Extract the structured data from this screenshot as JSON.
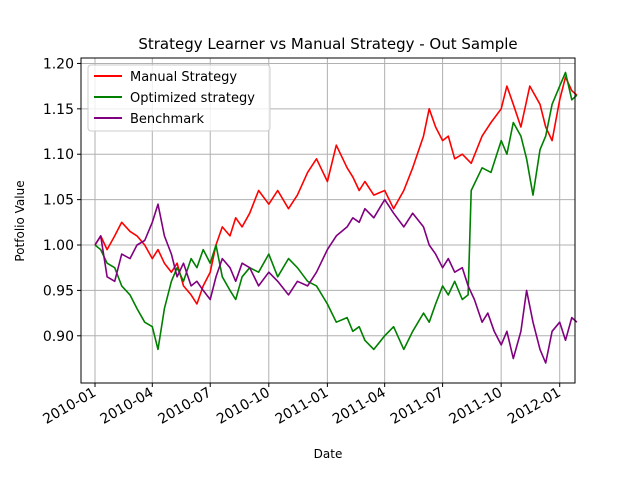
{
  "chart_data": {
    "type": "line",
    "title": "Strategy Learner vs Manual Strategy - Out Sample",
    "xlabel": "Date",
    "ylabel": "Potfolio Value",
    "xlim": [
      "2009-12-10",
      "2012-01-25"
    ],
    "ylim": [
      0.848,
      1.206
    ],
    "grid": true,
    "legend_position": "top-left",
    "x_ticks": [
      "2010-01",
      "2010-04",
      "2010-07",
      "2010-10",
      "2011-01",
      "2011-04",
      "2011-07",
      "2011-10",
      "2012-01"
    ],
    "x_tick_dates": [
      "2010-01-01",
      "2010-04-01",
      "2010-07-01",
      "2010-10-01",
      "2011-01-01",
      "2011-04-01",
      "2011-07-01",
      "2011-10-01",
      "2012-01-01"
    ],
    "y_ticks": [
      "0.90",
      "0.95",
      "1.00",
      "1.05",
      "1.10",
      "1.15",
      "1.20"
    ],
    "y_tick_values": [
      0.9,
      0.95,
      1.0,
      1.05,
      1.1,
      1.15,
      1.2
    ],
    "series": [
      {
        "name": "Manual Strategy",
        "color": "#ff0000",
        "points": [
          [
            "2010-01-01",
            1.0
          ],
          [
            "2010-01-10",
            1.01
          ],
          [
            "2010-01-20",
            0.995
          ],
          [
            "2010-02-01",
            1.01
          ],
          [
            "2010-02-12",
            1.025
          ],
          [
            "2010-02-25",
            1.015
          ],
          [
            "2010-03-08",
            1.01
          ],
          [
            "2010-03-20",
            1.0
          ],
          [
            "2010-04-01",
            0.985
          ],
          [
            "2010-04-10",
            0.995
          ],
          [
            "2010-04-20",
            0.98
          ],
          [
            "2010-05-01",
            0.97
          ],
          [
            "2010-05-10",
            0.98
          ],
          [
            "2010-05-20",
            0.955
          ],
          [
            "2010-06-01",
            0.945
          ],
          [
            "2010-06-10",
            0.935
          ],
          [
            "2010-06-20",
            0.955
          ],
          [
            "2010-07-01",
            0.97
          ],
          [
            "2010-07-10",
            1.0
          ],
          [
            "2010-07-20",
            1.02
          ],
          [
            "2010-08-01",
            1.01
          ],
          [
            "2010-08-10",
            1.03
          ],
          [
            "2010-08-20",
            1.02
          ],
          [
            "2010-09-01",
            1.035
          ],
          [
            "2010-09-15",
            1.06
          ],
          [
            "2010-10-01",
            1.045
          ],
          [
            "2010-10-15",
            1.06
          ],
          [
            "2010-11-01",
            1.04
          ],
          [
            "2010-11-15",
            1.055
          ],
          [
            "2010-12-01",
            1.08
          ],
          [
            "2010-12-15",
            1.095
          ],
          [
            "2011-01-01",
            1.07
          ],
          [
            "2011-01-15",
            1.11
          ],
          [
            "2011-02-01",
            1.085
          ],
          [
            "2011-02-10",
            1.075
          ],
          [
            "2011-02-20",
            1.06
          ],
          [
            "2011-03-01",
            1.07
          ],
          [
            "2011-03-15",
            1.055
          ],
          [
            "2011-04-01",
            1.06
          ],
          [
            "2011-04-15",
            1.04
          ],
          [
            "2011-05-01",
            1.06
          ],
          [
            "2011-05-15",
            1.085
          ],
          [
            "2011-06-01",
            1.12
          ],
          [
            "2011-06-10",
            1.15
          ],
          [
            "2011-06-20",
            1.13
          ],
          [
            "2011-07-01",
            1.115
          ],
          [
            "2011-07-10",
            1.12
          ],
          [
            "2011-07-20",
            1.095
          ],
          [
            "2011-08-01",
            1.1
          ],
          [
            "2011-08-15",
            1.09
          ],
          [
            "2011-09-01",
            1.12
          ],
          [
            "2011-09-15",
            1.135
          ],
          [
            "2011-10-01",
            1.15
          ],
          [
            "2011-10-10",
            1.175
          ],
          [
            "2011-10-20",
            1.155
          ],
          [
            "2011-11-01",
            1.13
          ],
          [
            "2011-11-15",
            1.175
          ],
          [
            "2011-12-01",
            1.155
          ],
          [
            "2011-12-10",
            1.13
          ],
          [
            "2011-12-20",
            1.115
          ],
          [
            "2012-01-01",
            1.16
          ],
          [
            "2012-01-10",
            1.185
          ],
          [
            "2012-01-20",
            1.17
          ],
          [
            "2012-01-28",
            1.165
          ]
        ]
      },
      {
        "name": "Optimized strategy",
        "color": "#008000",
        "points": [
          [
            "2010-01-01",
            1.0
          ],
          [
            "2010-01-10",
            0.995
          ],
          [
            "2010-01-20",
            0.98
          ],
          [
            "2010-02-01",
            0.975
          ],
          [
            "2010-02-12",
            0.955
          ],
          [
            "2010-02-25",
            0.945
          ],
          [
            "2010-03-08",
            0.93
          ],
          [
            "2010-03-20",
            0.915
          ],
          [
            "2010-04-01",
            0.91
          ],
          [
            "2010-04-10",
            0.885
          ],
          [
            "2010-04-20",
            0.93
          ],
          [
            "2010-05-01",
            0.96
          ],
          [
            "2010-05-10",
            0.975
          ],
          [
            "2010-05-20",
            0.96
          ],
          [
            "2010-06-01",
            0.985
          ],
          [
            "2010-06-10",
            0.975
          ],
          [
            "2010-06-20",
            0.995
          ],
          [
            "2010-07-01",
            0.98
          ],
          [
            "2010-07-10",
            1.0
          ],
          [
            "2010-07-20",
            0.965
          ],
          [
            "2010-08-01",
            0.95
          ],
          [
            "2010-08-10",
            0.94
          ],
          [
            "2010-08-20",
            0.965
          ],
          [
            "2010-09-01",
            0.975
          ],
          [
            "2010-09-15",
            0.97
          ],
          [
            "2010-10-01",
            0.99
          ],
          [
            "2010-10-15",
            0.965
          ],
          [
            "2010-11-01",
            0.985
          ],
          [
            "2010-11-15",
            0.975
          ],
          [
            "2010-12-01",
            0.96
          ],
          [
            "2010-12-15",
            0.955
          ],
          [
            "2011-01-01",
            0.935
          ],
          [
            "2011-01-15",
            0.915
          ],
          [
            "2011-02-01",
            0.92
          ],
          [
            "2011-02-10",
            0.905
          ],
          [
            "2011-02-20",
            0.91
          ],
          [
            "2011-03-01",
            0.895
          ],
          [
            "2011-03-15",
            0.885
          ],
          [
            "2011-04-01",
            0.9
          ],
          [
            "2011-04-15",
            0.91
          ],
          [
            "2011-05-01",
            0.885
          ],
          [
            "2011-05-15",
            0.905
          ],
          [
            "2011-06-01",
            0.925
          ],
          [
            "2011-06-10",
            0.915
          ],
          [
            "2011-06-20",
            0.935
          ],
          [
            "2011-07-01",
            0.955
          ],
          [
            "2011-07-10",
            0.945
          ],
          [
            "2011-07-20",
            0.96
          ],
          [
            "2011-08-01",
            0.94
          ],
          [
            "2011-08-10",
            0.945
          ],
          [
            "2011-08-15",
            1.06
          ],
          [
            "2011-09-01",
            1.085
          ],
          [
            "2011-09-15",
            1.08
          ],
          [
            "2011-10-01",
            1.115
          ],
          [
            "2011-10-10",
            1.1
          ],
          [
            "2011-10-20",
            1.135
          ],
          [
            "2011-11-01",
            1.12
          ],
          [
            "2011-11-10",
            1.095
          ],
          [
            "2011-11-20",
            1.055
          ],
          [
            "2011-12-01",
            1.105
          ],
          [
            "2011-12-10",
            1.12
          ],
          [
            "2011-12-20",
            1.155
          ],
          [
            "2012-01-01",
            1.175
          ],
          [
            "2012-01-10",
            1.19
          ],
          [
            "2012-01-20",
            1.16
          ],
          [
            "2012-01-28",
            1.165
          ]
        ]
      },
      {
        "name": "Benchmark",
        "color": "#800080",
        "points": [
          [
            "2010-01-01",
            1.0
          ],
          [
            "2010-01-10",
            1.01
          ],
          [
            "2010-01-20",
            0.965
          ],
          [
            "2010-02-01",
            0.96
          ],
          [
            "2010-02-12",
            0.99
          ],
          [
            "2010-02-25",
            0.985
          ],
          [
            "2010-03-08",
            1.0
          ],
          [
            "2010-03-20",
            1.005
          ],
          [
            "2010-04-01",
            1.025
          ],
          [
            "2010-04-10",
            1.045
          ],
          [
            "2010-04-20",
            1.01
          ],
          [
            "2010-05-01",
            0.99
          ],
          [
            "2010-05-10",
            0.965
          ],
          [
            "2010-05-20",
            0.98
          ],
          [
            "2010-06-01",
            0.955
          ],
          [
            "2010-06-10",
            0.96
          ],
          [
            "2010-06-20",
            0.95
          ],
          [
            "2010-07-01",
            0.94
          ],
          [
            "2010-07-10",
            0.965
          ],
          [
            "2010-07-20",
            0.985
          ],
          [
            "2010-08-01",
            0.975
          ],
          [
            "2010-08-10",
            0.96
          ],
          [
            "2010-08-20",
            0.98
          ],
          [
            "2010-09-01",
            0.975
          ],
          [
            "2010-09-15",
            0.955
          ],
          [
            "2010-10-01",
            0.97
          ],
          [
            "2010-10-15",
            0.96
          ],
          [
            "2010-11-01",
            0.945
          ],
          [
            "2010-11-15",
            0.96
          ],
          [
            "2010-12-01",
            0.955
          ],
          [
            "2010-12-15",
            0.97
          ],
          [
            "2011-01-01",
            0.995
          ],
          [
            "2011-01-15",
            1.01
          ],
          [
            "2011-02-01",
            1.02
          ],
          [
            "2011-02-10",
            1.03
          ],
          [
            "2011-02-20",
            1.025
          ],
          [
            "2011-03-01",
            1.04
          ],
          [
            "2011-03-15",
            1.03
          ],
          [
            "2011-04-01",
            1.05
          ],
          [
            "2011-04-15",
            1.035
          ],
          [
            "2011-05-01",
            1.02
          ],
          [
            "2011-05-15",
            1.035
          ],
          [
            "2011-06-01",
            1.02
          ],
          [
            "2011-06-10",
            1.0
          ],
          [
            "2011-06-20",
            0.99
          ],
          [
            "2011-07-01",
            0.975
          ],
          [
            "2011-07-10",
            0.985
          ],
          [
            "2011-07-20",
            0.97
          ],
          [
            "2011-08-01",
            0.975
          ],
          [
            "2011-08-10",
            0.955
          ],
          [
            "2011-08-20",
            0.94
          ],
          [
            "2011-09-01",
            0.915
          ],
          [
            "2011-09-10",
            0.925
          ],
          [
            "2011-09-20",
            0.905
          ],
          [
            "2011-10-01",
            0.89
          ],
          [
            "2011-10-10",
            0.905
          ],
          [
            "2011-10-20",
            0.875
          ],
          [
            "2011-11-01",
            0.905
          ],
          [
            "2011-11-10",
            0.95
          ],
          [
            "2011-11-20",
            0.915
          ],
          [
            "2011-12-01",
            0.885
          ],
          [
            "2011-12-10",
            0.87
          ],
          [
            "2011-12-20",
            0.905
          ],
          [
            "2012-01-01",
            0.915
          ],
          [
            "2012-01-10",
            0.895
          ],
          [
            "2012-01-20",
            0.92
          ],
          [
            "2012-01-28",
            0.915
          ]
        ]
      }
    ]
  }
}
